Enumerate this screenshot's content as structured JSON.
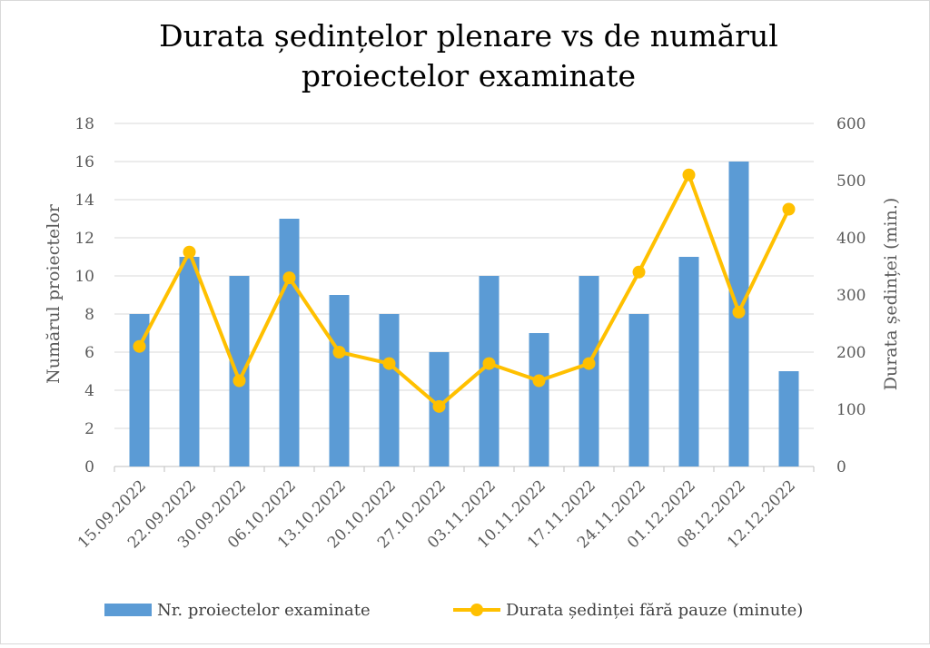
{
  "chart_data": {
    "type": "bar+line",
    "title_lines": [
      "Durata ședințelor plenare vs de numărul",
      "proiectelor examinate"
    ],
    "categories": [
      "15.09.2022",
      "22.09.2022",
      "30.09.2022",
      "06.10.2022",
      "13.10.2022",
      "20.10.2022",
      "27.10.2022",
      "03.11.2022",
      "10.11.2022",
      "17.11.2022",
      "24.11.2022",
      "01.12.2022",
      "08.12.2022",
      "12.12.2022"
    ],
    "series": [
      {
        "name": "Nr. proiectelor examinate",
        "type": "bar",
        "axis": "left",
        "color": "#5b9bd5",
        "values": [
          8,
          11,
          10,
          13,
          9,
          8,
          6,
          10,
          7,
          10,
          8,
          11,
          16,
          5
        ]
      },
      {
        "name": "Durata ședinței fără pauze (minute)",
        "type": "line",
        "axis": "right",
        "color": "#ffc000",
        "values": [
          210,
          375,
          150,
          330,
          200,
          180,
          105,
          180,
          150,
          180,
          340,
          510,
          270,
          450
        ]
      }
    ],
    "ylabel_left": "Numărul proiectelor",
    "ylabel_right": "Durata ședinței (min.)",
    "ylim_left": [
      0,
      18
    ],
    "ylim_right": [
      0,
      600
    ],
    "yticks_left": [
      "0",
      "2",
      "4",
      "6",
      "8",
      "10",
      "12",
      "14",
      "16",
      "18"
    ],
    "yticks_right": [
      "0",
      "100",
      "200",
      "300",
      "400",
      "500",
      "600"
    ],
    "grid": true,
    "legend_position": "bottom"
  }
}
